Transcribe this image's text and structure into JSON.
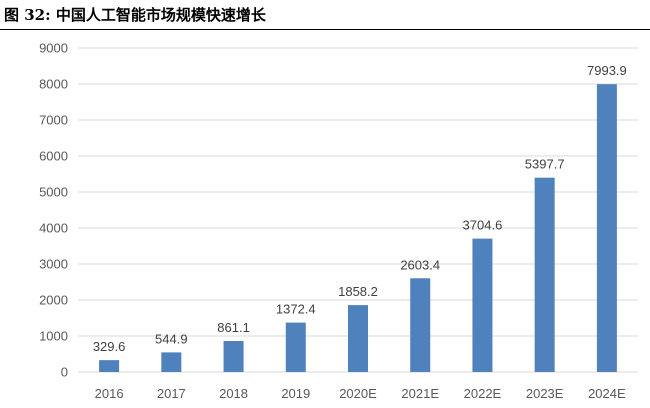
{
  "figure": {
    "title": "图 32:  中国人工智能市场规模快速增长"
  },
  "chart_data": {
    "type": "bar",
    "title": "",
    "xlabel": "",
    "ylabel": "",
    "categories": [
      "2016",
      "2017",
      "2018",
      "2019",
      "2020E",
      "2021E",
      "2022E",
      "2023E",
      "2024E"
    ],
    "values": [
      329.6,
      544.9,
      861.1,
      1372.4,
      1858.2,
      2603.4,
      3704.6,
      5397.7,
      7993.9
    ],
    "value_labels": [
      "329.6",
      "544.9",
      "861.1",
      "1372.4",
      "1858.2",
      "2603.4",
      "3704.6",
      "5397.7",
      "7993.9"
    ],
    "ylim": [
      0,
      9000
    ],
    "yticks": [
      0,
      1000,
      2000,
      3000,
      4000,
      5000,
      6000,
      7000,
      8000,
      9000
    ],
    "grid": true,
    "legend": "none",
    "bar_color": "#4f81bd",
    "grid_color": "#d9d9d9"
  }
}
